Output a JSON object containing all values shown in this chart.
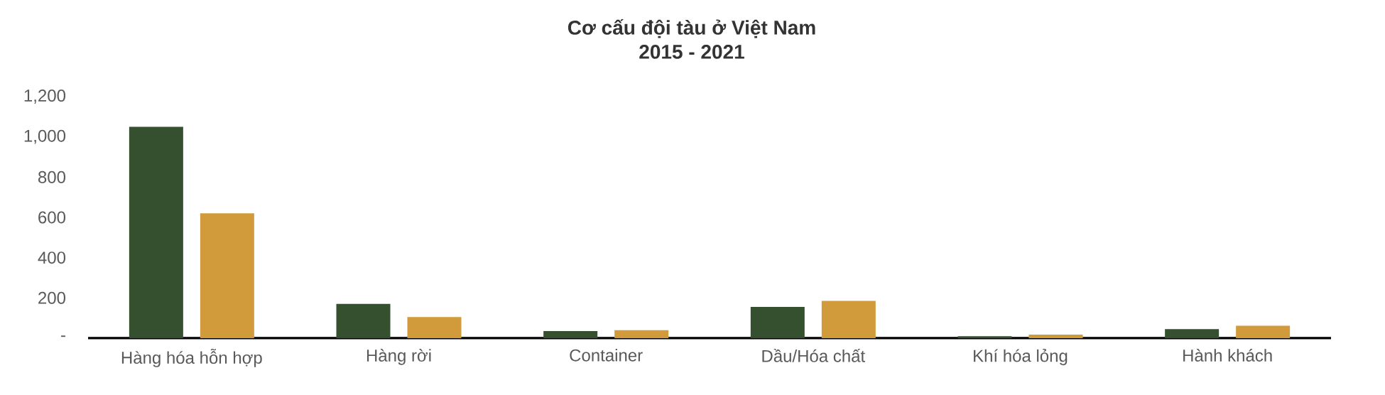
{
  "chart_data": {
    "type": "bar",
    "title": "Cơ cấu đội tàu ở Việt Nam",
    "subtitle": "2015 - 2021",
    "categories": [
      "Hàng hóa hỗn hợp",
      "Hàng rời",
      "Container",
      "Dầu/Hóa chất",
      "Khí hóa lỏng",
      "Hành khách"
    ],
    "series": [
      {
        "color": "#34502f",
        "values": [
          1050,
          170,
          35,
          155,
          10,
          45
        ]
      },
      {
        "color": "#d19a3a",
        "values": [
          620,
          105,
          40,
          185,
          18,
          62
        ]
      }
    ],
    "ylim": [
      0,
      1200
    ],
    "yticks": [
      {
        "value": 0,
        "label": "-"
      },
      200,
      400,
      600,
      800,
      {
        "value": 1000,
        "label": "1,000"
      },
      {
        "value": 1200,
        "label": "1,200"
      }
    ]
  }
}
